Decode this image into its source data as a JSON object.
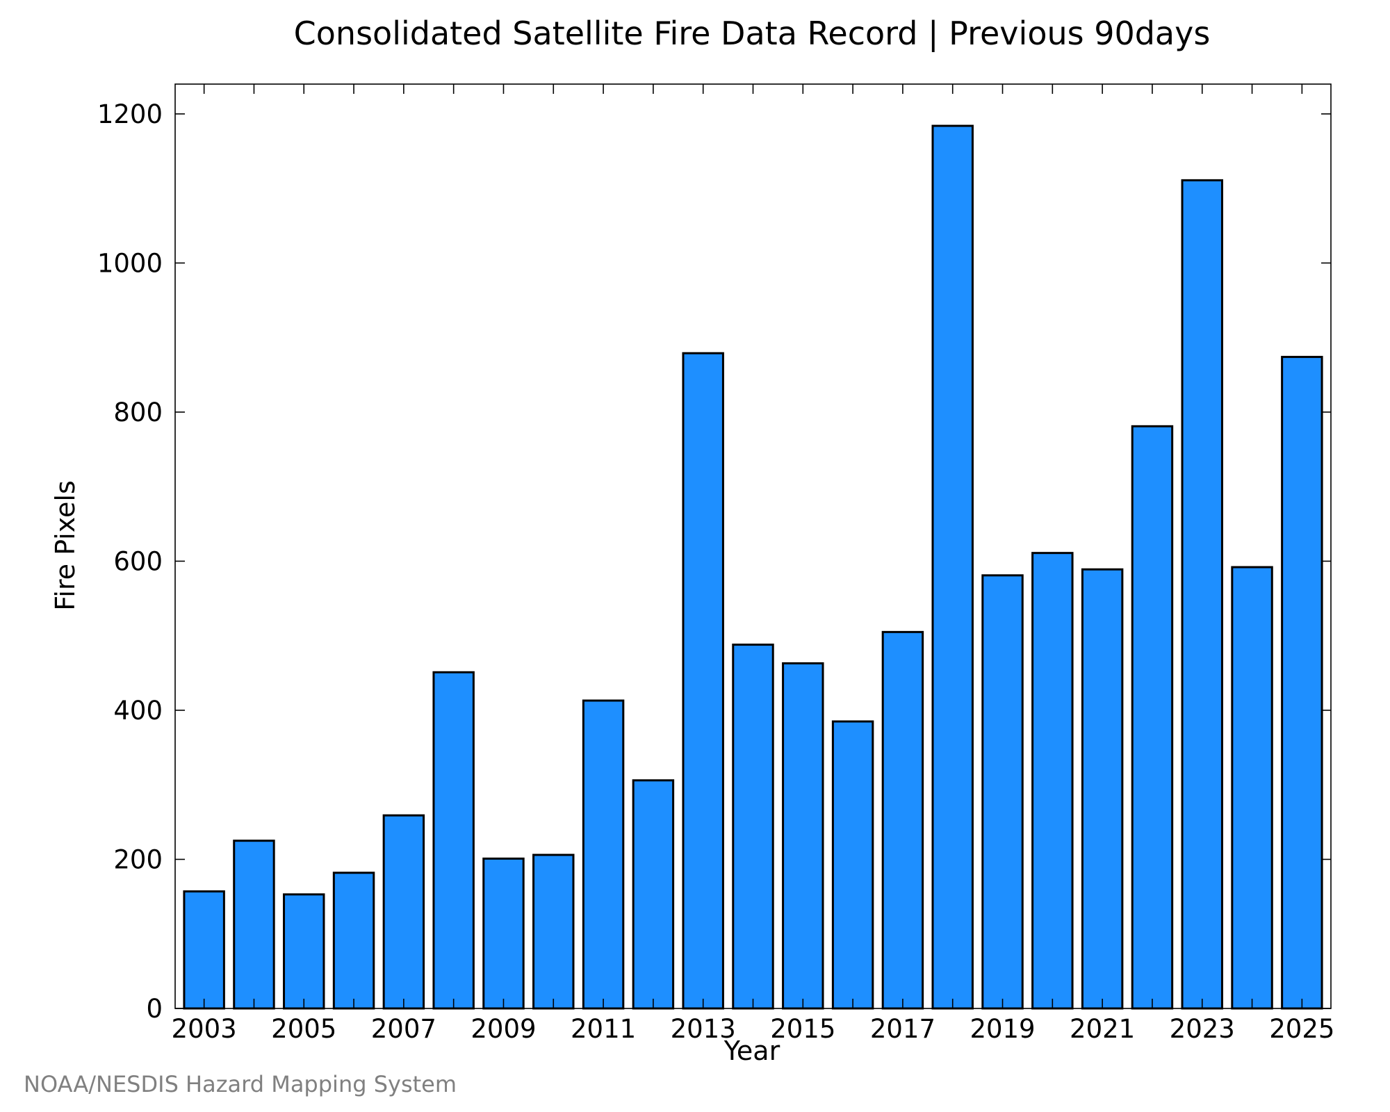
{
  "chart_data": {
    "type": "bar",
    "title": "Consolidated Satellite Fire Data Record | Previous 90days",
    "xlabel": "Year",
    "ylabel": "Fire Pixels",
    "ylim": [
      0,
      1240
    ],
    "yticks": [
      0,
      200,
      400,
      600,
      800,
      1000,
      1200
    ],
    "xtick_labels": [
      "2003",
      "2005",
      "2007",
      "2009",
      "2011",
      "2013",
      "2015",
      "2017",
      "2019",
      "2021",
      "2023",
      "2025"
    ],
    "categories": [
      "2003",
      "2004",
      "2005",
      "2006",
      "2007",
      "2008",
      "2009",
      "2010",
      "2011",
      "2012",
      "2013",
      "2014",
      "2015",
      "2016",
      "2017",
      "2018",
      "2019",
      "2020",
      "2021",
      "2022",
      "2023",
      "2024",
      "2025"
    ],
    "values": [
      157,
      225,
      153,
      182,
      259,
      451,
      201,
      206,
      413,
      306,
      879,
      488,
      463,
      385,
      505,
      1184,
      581,
      611,
      589,
      781,
      1111,
      592,
      874
    ],
    "bar_color": "#1e8fff",
    "grid": false,
    "legend": "none"
  },
  "footer": {
    "credit": "NOAA/NESDIS Hazard Mapping System"
  }
}
